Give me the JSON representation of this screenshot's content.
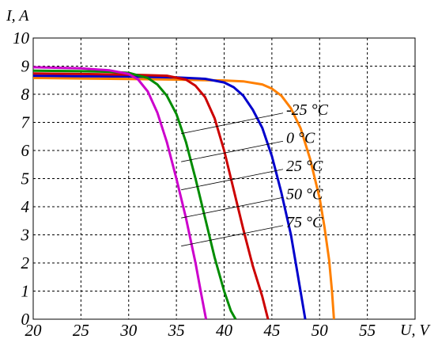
{
  "chart_data": {
    "type": "line",
    "xlabel": "U, V",
    "ylabel": "I, A",
    "xlim": [
      20,
      60
    ],
    "ylim": [
      0,
      10
    ],
    "x_ticks": [
      "20",
      "25",
      "30",
      "35",
      "40",
      "45",
      "50",
      "55"
    ],
    "y_ticks": [
      "0",
      "1",
      "2",
      "3",
      "4",
      "5",
      "6",
      "7",
      "8",
      "9",
      "10"
    ],
    "grid": true,
    "series": [
      {
        "name": "-25 °C",
        "color": "#ff8000",
        "points": [
          [
            20,
            8.58
          ],
          [
            25,
            8.56
          ],
          [
            30,
            8.54
          ],
          [
            35,
            8.52
          ],
          [
            40,
            8.49
          ],
          [
            42,
            8.46
          ],
          [
            44,
            8.35
          ],
          [
            45,
            8.2
          ],
          [
            46,
            7.95
          ],
          [
            47,
            7.5
          ],
          [
            48,
            6.8
          ],
          [
            49,
            5.7
          ],
          [
            50,
            4.3
          ],
          [
            50.5,
            3.3
          ],
          [
            51,
            2.1
          ],
          [
            51.3,
            1.0
          ],
          [
            51.5,
            0
          ]
        ]
      },
      {
        "name": "0 °C",
        "color": "#0000cc",
        "points": [
          [
            20,
            8.66
          ],
          [
            25,
            8.64
          ],
          [
            30,
            8.63
          ],
          [
            35,
            8.6
          ],
          [
            38,
            8.55
          ],
          [
            40,
            8.42
          ],
          [
            41,
            8.25
          ],
          [
            42,
            7.95
          ],
          [
            43,
            7.45
          ],
          [
            44,
            6.8
          ],
          [
            45,
            5.8
          ],
          [
            46,
            4.5
          ],
          [
            47,
            3.0
          ],
          [
            47.7,
            1.6
          ],
          [
            48.2,
            0.6
          ],
          [
            48.5,
            0
          ]
        ]
      },
      {
        "name": "25 °C",
        "color": "#cc0000",
        "points": [
          [
            20,
            8.74
          ],
          [
            25,
            8.72
          ],
          [
            30,
            8.7
          ],
          [
            34,
            8.66
          ],
          [
            36,
            8.52
          ],
          [
            37,
            8.3
          ],
          [
            38,
            7.9
          ],
          [
            39,
            7.15
          ],
          [
            40,
            6.0
          ],
          [
            41,
            4.6
          ],
          [
            42,
            3.2
          ],
          [
            43,
            1.9
          ],
          [
            44,
            0.8
          ],
          [
            44.6,
            0
          ]
        ]
      },
      {
        "name": "50 °C",
        "color": "#008c00",
        "points": [
          [
            20,
            8.84
          ],
          [
            25,
            8.82
          ],
          [
            28,
            8.8
          ],
          [
            30,
            8.76
          ],
          [
            32,
            8.58
          ],
          [
            33,
            8.35
          ],
          [
            34,
            7.95
          ],
          [
            35,
            7.3
          ],
          [
            36,
            6.3
          ],
          [
            37,
            5.0
          ],
          [
            38,
            3.6
          ],
          [
            39,
            2.2
          ],
          [
            40,
            1.0
          ],
          [
            40.7,
            0.3
          ],
          [
            41.2,
            0
          ]
        ]
      },
      {
        "name": "75 °C",
        "color": "#cc00cc",
        "points": [
          [
            20,
            8.96
          ],
          [
            25,
            8.92
          ],
          [
            28,
            8.85
          ],
          [
            30,
            8.72
          ],
          [
            31,
            8.52
          ],
          [
            32,
            8.1
          ],
          [
            33,
            7.35
          ],
          [
            34,
            6.3
          ],
          [
            35,
            5.0
          ],
          [
            36,
            3.6
          ],
          [
            37,
            2.0
          ],
          [
            37.6,
            0.9
          ],
          [
            38.1,
            0
          ]
        ]
      }
    ],
    "annotations": [
      {
        "text": "-25 °C",
        "anchor": [
          35.5,
          6.6
        ],
        "label_pos": [
          46.5,
          7.5
        ]
      },
      {
        "text": "0 °C",
        "anchor": [
          35.5,
          5.6
        ],
        "label_pos": [
          46.5,
          6.5
        ]
      },
      {
        "text": "25 °C",
        "anchor": [
          35.5,
          4.6
        ],
        "label_pos": [
          46.5,
          5.5
        ]
      },
      {
        "text": "50 °C",
        "anchor": [
          35.5,
          3.6
        ],
        "label_pos": [
          46.5,
          4.5
        ]
      },
      {
        "text": "75 °C",
        "anchor": [
          35.5,
          2.6
        ],
        "label_pos": [
          46.5,
          3.5
        ]
      }
    ]
  }
}
